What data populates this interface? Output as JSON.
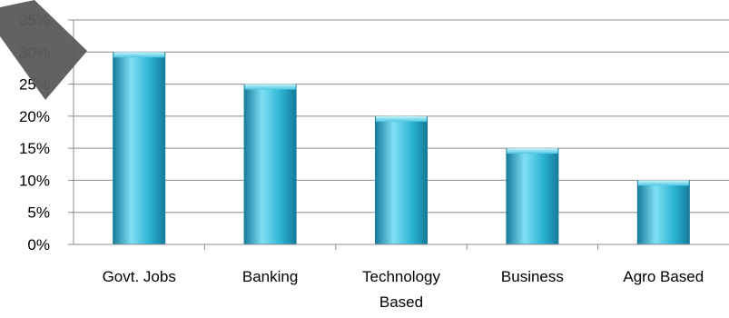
{
  "chart_data": {
    "type": "bar",
    "categories": [
      "Govt. Jobs",
      "Banking",
      "Technology Based",
      "Business",
      "Agro Based"
    ],
    "category_lines": [
      [
        "Govt. Jobs"
      ],
      [
        "Banking"
      ],
      [
        "Technology",
        "Based"
      ],
      [
        "Business"
      ],
      [
        "Agro Based"
      ]
    ],
    "values": [
      30,
      25,
      20,
      15,
      10
    ],
    "ylim": [
      0,
      35
    ],
    "yticks": [
      "0%",
      "5%",
      "10%",
      "15%",
      "20%",
      "25%",
      "30%",
      "35%"
    ],
    "grid": true,
    "colors": {
      "bar_light": "#7fe0f4",
      "bar_mid": "#2bb3d3",
      "bar_dark": "#147a99",
      "grid": "#8c8c8c",
      "axis": "#8c8c8c"
    }
  }
}
